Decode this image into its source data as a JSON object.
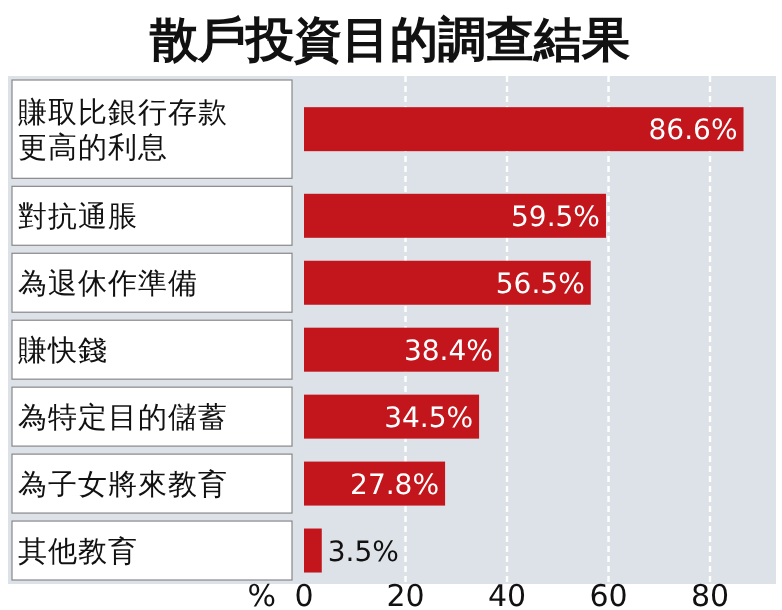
{
  "chart_data": {
    "type": "bar",
    "orientation": "horizontal",
    "title": "散戶投資目的調查結果",
    "categories": [
      "賺取比銀行存款更高的利息",
      "對抗通脹",
      "為退休作準備",
      "賺快錢",
      "為特定目的儲蓄",
      "為子女將來教育",
      "其他教育"
    ],
    "values": [
      86.6,
      59.5,
      56.5,
      38.4,
      34.5,
      27.8,
      3.5
    ],
    "value_labels": [
      "86.6%",
      "59.5%",
      "56.5%",
      "38.4%",
      "34.5%",
      "27.8%",
      "3.5%"
    ],
    "color": "#c3161c",
    "xlabel": "%",
    "xlim": [
      0,
      93
    ],
    "xticks": [
      0,
      20,
      40,
      60,
      80
    ],
    "grid": "x"
  }
}
